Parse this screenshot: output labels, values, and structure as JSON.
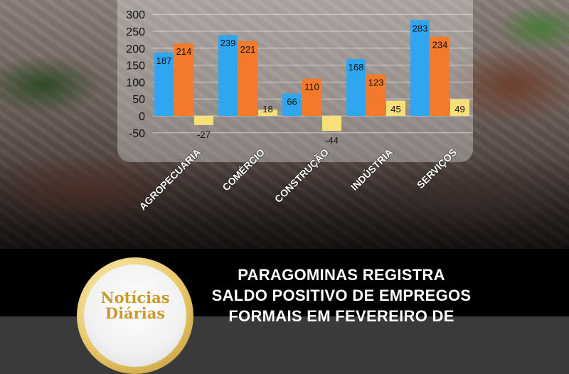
{
  "chart_data": {
    "type": "bar",
    "categories": [
      "AGROPECUÁRIA",
      "COMÉRCIO",
      "CONSTRUÇÃO",
      "INDÚSTRIA",
      "SERVIÇOS"
    ],
    "series": [
      {
        "values": [
          187,
          239,
          66,
          168,
          283
        ],
        "color": "#2fa6ee"
      },
      {
        "values": [
          214,
          221,
          110,
          123,
          234
        ],
        "color": "#f47a2b"
      },
      {
        "values": [
          -27,
          18,
          -44,
          45,
          49
        ],
        "color": "#f7e07a"
      }
    ],
    "y_ticks": [
      -50,
      0,
      50,
      100,
      150,
      200,
      250,
      300
    ],
    "ylim": [
      -50,
      320
    ],
    "grid": true
  },
  "logo": {
    "line1": "Notícias",
    "line2": "Diárias"
  },
  "headline": {
    "line1": "PARAGOMINAS REGISTRA",
    "line2": "SALDO POSITIVO DE EMPREGOS",
    "line3": "FORMAIS EM FEVEREIRO DE"
  }
}
